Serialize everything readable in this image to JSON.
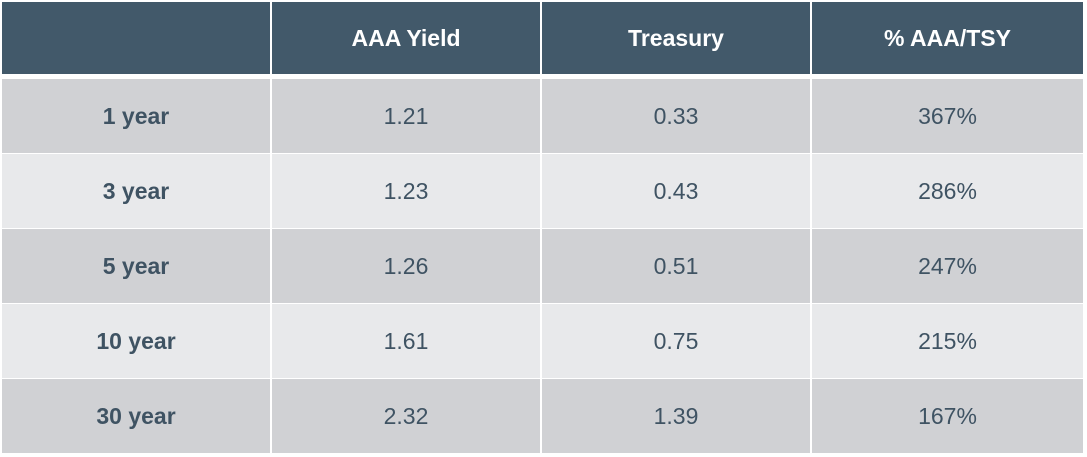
{
  "chart_data": {
    "type": "table",
    "columns": [
      "",
      "AAA Yield",
      "Treasury",
      "% AAA/TSY"
    ],
    "rows": [
      {
        "term": "1 year",
        "aaa_yield": "1.21",
        "treasury": "0.33",
        "ratio": "367%"
      },
      {
        "term": "3 year",
        "aaa_yield": "1.23",
        "treasury": "0.43",
        "ratio": "286%"
      },
      {
        "term": "5 year",
        "aaa_yield": "1.26",
        "treasury": "0.51",
        "ratio": "247%"
      },
      {
        "term": "10 year",
        "aaa_yield": "1.61",
        "treasury": "0.75",
        "ratio": "215%"
      },
      {
        "term": "30 year",
        "aaa_yield": "2.32",
        "treasury": "1.39",
        "ratio": "167%"
      }
    ]
  },
  "colors": {
    "header_bg": "#42596a",
    "header_text": "#ffffff",
    "row_odd_bg": "#d0d1d4",
    "row_even_bg": "#e8e9eb",
    "cell_text": "#3f5363"
  }
}
